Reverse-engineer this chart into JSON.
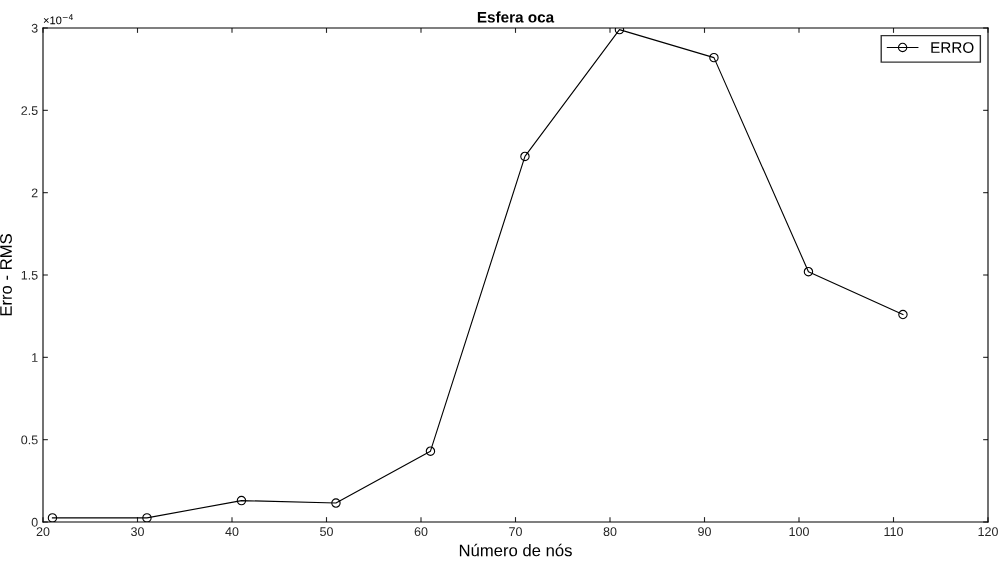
{
  "chart_data": {
    "type": "line",
    "title": "Esfera oca",
    "xlabel": "Número de nós",
    "ylabel": "Erro - RMS",
    "annotations": [
      "×10$^{−4}$"
    ],
    "x": [
      21,
      31,
      41,
      51,
      61,
      71,
      81,
      91,
      101,
      111
    ],
    "series": [
      {
        "name": "ERRO",
        "color": "#000000",
        "values": [
          0.025,
          0.025,
          0.13,
          0.115,
          0.43,
          2.22,
          2.99,
          2.82,
          1.52,
          1.26
        ]
      }
    ],
    "xlim": [
      20,
      120
    ],
    "xticks": [
      20,
      30,
      40,
      50,
      60,
      70,
      80,
      90,
      100,
      110,
      120
    ],
    "ylim": [
      0,
      3
    ],
    "yticks": [
      0,
      0.5,
      1,
      1.5,
      2,
      2.5,
      3
    ],
    "grid": false,
    "legend": "top right",
    "marker": "circle",
    "line_style": "solid"
  }
}
